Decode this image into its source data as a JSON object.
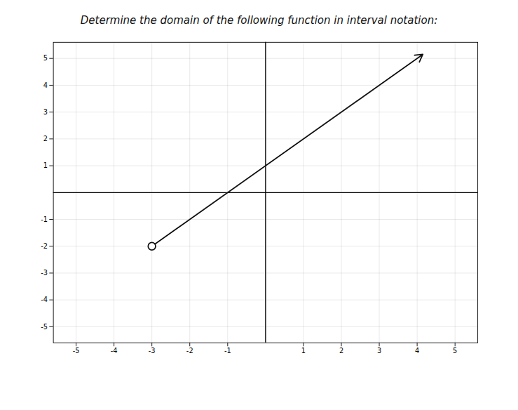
{
  "chart_data": {
    "type": "line",
    "title": "Determine the domain of the following function in interval notation:",
    "x": [
      -3,
      4.15
    ],
    "values": [
      -2,
      5.15
    ],
    "color": "#111111",
    "xlim": [
      -5.6,
      5.6
    ],
    "ylim": [
      -5.6,
      5.6
    ],
    "xticks": [
      -5,
      -4,
      -3,
      -2,
      -1,
      1,
      2,
      3,
      4,
      5
    ],
    "yticks": [
      -5,
      -4,
      -3,
      -2,
      -1,
      1,
      2,
      3,
      4,
      5
    ],
    "grid": true
  }
}
